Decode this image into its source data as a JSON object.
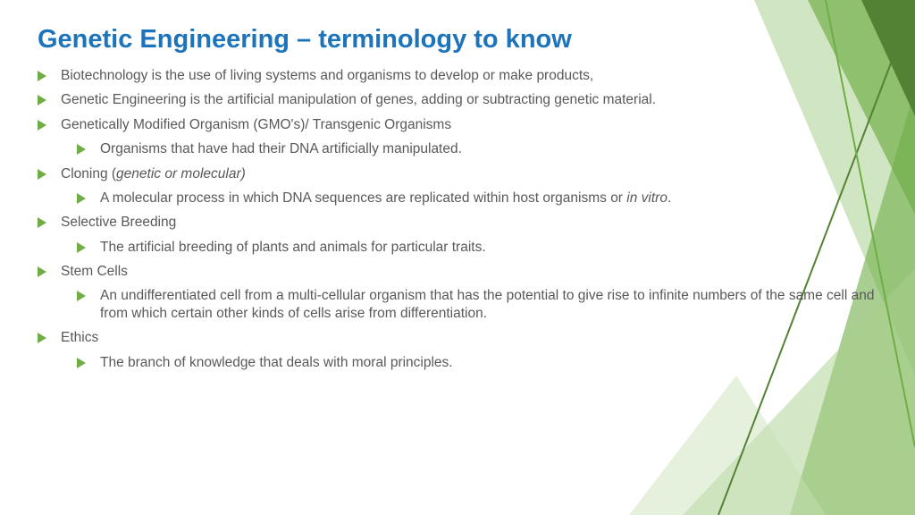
{
  "colors": {
    "title": "#1d74bb",
    "bullet": "#70ad47",
    "text": "#595959",
    "background": "#ffffff",
    "deco_dark": "#548235",
    "deco_mid": "#70ad47",
    "deco_light": "#a9d08e",
    "deco_pale": "#c5e0b4"
  },
  "title": "Genetic Engineering – terminology to know",
  "items": [
    {
      "text": "Biotechnology is the use of living systems and organisms to develop or make products,"
    },
    {
      "text": "Genetic Engineering is the artificial manipulation of genes, adding or subtracting genetic material."
    },
    {
      "text": "Genetically Modified Organism (GMO's)/ Transgenic Organisms",
      "sub": [
        {
          "text": "Organisms that have had their DNA artificially manipulated."
        }
      ]
    },
    {
      "html": "Cloning (<span class=\"italic\">genetic or molecular)</span>",
      "sub": [
        {
          "html": "A molecular process in which DNA sequences are replicated within host organisms or <span class=\"italic\">in vitro</span>."
        }
      ]
    },
    {
      "text": "Selective Breeding",
      "sub": [
        {
          "text": "The artificial breeding of plants and animals  for particular traits."
        }
      ]
    },
    {
      "text": "Stem Cells",
      "sub": [
        {
          "text": "An undifferentiated cell from a multi-cellular organism that has the potential to give rise to infinite numbers of the same cell and from which certain other kinds of cells arise from differentiation."
        }
      ]
    },
    {
      "text": "Ethics",
      "sub": [
        {
          "text": "The branch of knowledge that deals with moral principles."
        }
      ]
    }
  ]
}
